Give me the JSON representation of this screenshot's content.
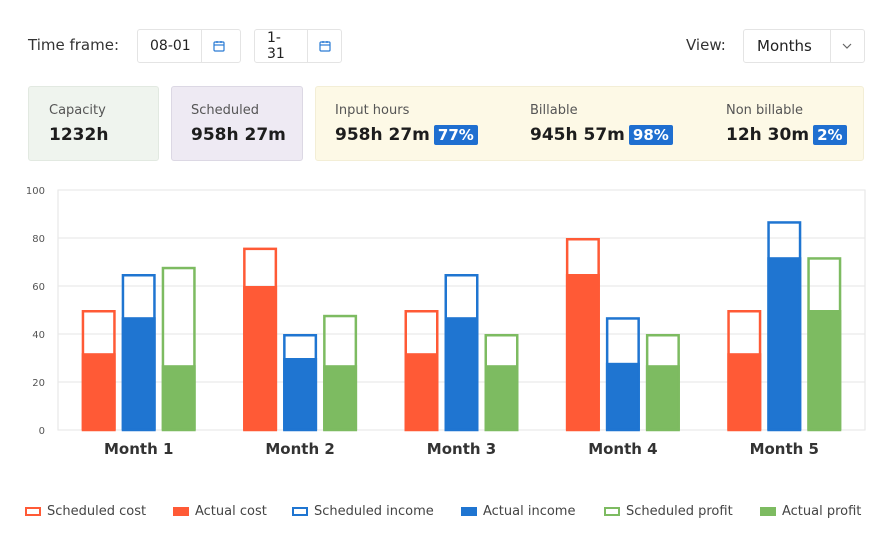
{
  "filters": {
    "time_frame_label": "Time frame:",
    "start_value": "08-01",
    "end_value": "1-31",
    "view_label": "View:",
    "view_value": "Months"
  },
  "stats": {
    "capacity": {
      "label": "Capacity",
      "value": "1232h"
    },
    "scheduled": {
      "label": "Scheduled",
      "value": "958h 27m"
    },
    "input_hours": {
      "label": "Input hours",
      "value": "958h 27m",
      "pct": "77%"
    },
    "billable": {
      "label": "Billable",
      "value": "945h 57m",
      "pct": "98%"
    },
    "non_billable": {
      "label": "Non billable",
      "value": "12h 30m",
      "pct": "2%"
    }
  },
  "colors": {
    "cost": "#ff5a36",
    "income": "#1f75d1",
    "profit": "#7dbb61",
    "capacity_bg": "#eff4ee",
    "scheduled_bg": "#eeeaf3",
    "input_bg": "#fdf9e6",
    "pct_badge": "#1f6fd0"
  },
  "chart_data": {
    "type": "bar",
    "categories": [
      "Month 1",
      "Month 2",
      "Month 3",
      "Month 4",
      "Month 5"
    ],
    "ylim": [
      0,
      100
    ],
    "yticks": [
      0,
      20,
      40,
      60,
      80,
      100
    ],
    "grid": true,
    "legend_position": "bottom",
    "groups": [
      {
        "scheduled_name": "Scheduled cost",
        "actual_name": "Actual cost",
        "color": "#ff5a36",
        "scheduled": [
          50,
          76,
          50,
          80,
          50
        ],
        "actual": [
          32,
          60,
          32,
          65,
          32
        ]
      },
      {
        "scheduled_name": "Scheduled income",
        "actual_name": "Actual income",
        "color": "#1f75d1",
        "scheduled": [
          65,
          40,
          65,
          47,
          87
        ],
        "actual": [
          47,
          30,
          47,
          28,
          72
        ]
      },
      {
        "scheduled_name": "Scheduled profit",
        "actual_name": "Actual profit",
        "color": "#7dbb61",
        "scheduled": [
          68,
          48,
          40,
          40,
          72
        ],
        "actual": [
          27,
          27,
          27,
          27,
          50
        ]
      }
    ]
  }
}
